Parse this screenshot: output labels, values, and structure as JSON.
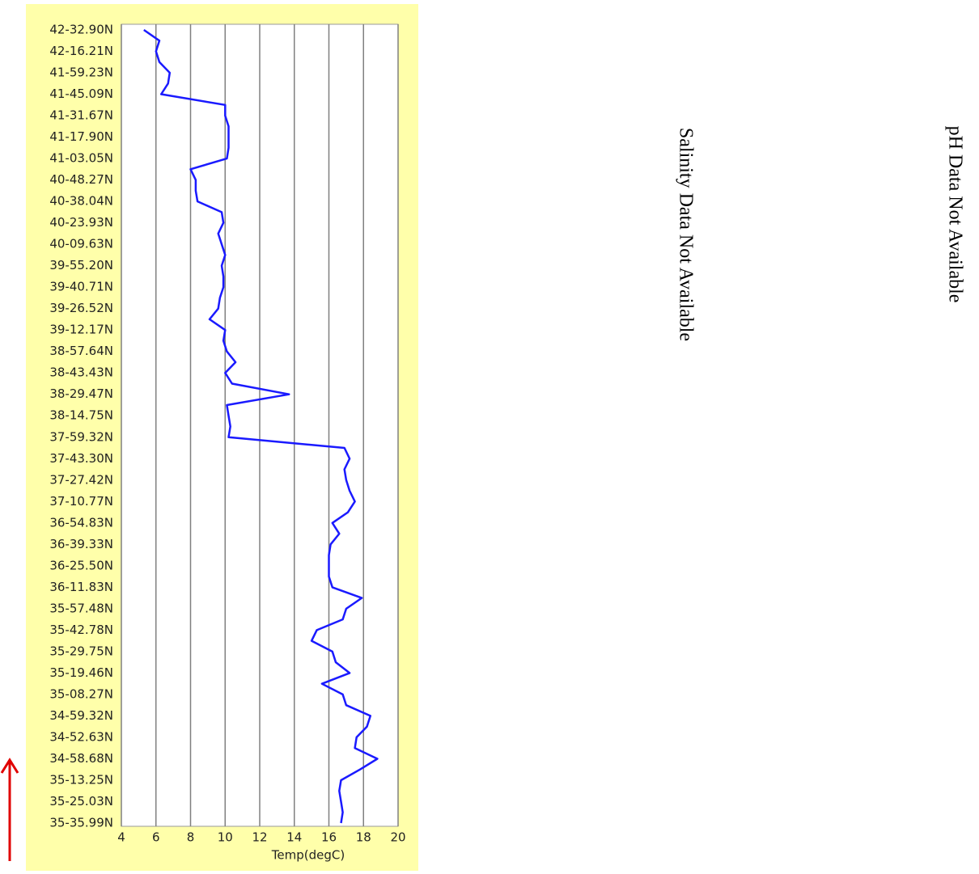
{
  "chart_data": {
    "type": "line",
    "orientation": "horizontal",
    "x_label": "Temp(degC)",
    "categories": [
      "42-32.90N",
      null,
      "42-16.21N",
      null,
      "41-59.23N",
      null,
      "41-45.09N",
      null,
      "41-31.67N",
      null,
      "41-17.90N",
      null,
      "41-03.05N",
      null,
      "40-48.27N",
      null,
      "40-38.04N",
      null,
      "40-23.93N",
      null,
      "40-09.63N",
      null,
      "39-55.20N",
      null,
      "39-40.71N",
      null,
      "39-26.52N",
      null,
      "39-12.17N",
      null,
      "38-57.64N",
      null,
      "38-43.43N",
      null,
      "38-29.47N",
      null,
      "38-14.75N",
      null,
      "37-59.32N",
      null,
      "37-43.30N",
      null,
      "37-27.42N",
      null,
      "37-10.77N",
      null,
      "36-54.83N",
      null,
      "36-39.33N",
      null,
      "36-25.50N",
      null,
      "36-11.83N",
      null,
      "35-57.48N",
      null,
      "35-42.78N",
      null,
      "35-29.75N",
      null,
      "35-19.46N",
      null,
      "35-08.27N",
      null,
      "34-59.32N",
      null,
      "34-52.63N",
      null,
      "34-58.68N",
      null,
      "35-13.25N",
      null,
      "35-25.03N",
      null,
      "35-35.99N"
    ],
    "series": [
      {
        "color": "#1a1aff",
        "values": [
          5.3,
          6.2,
          6.0,
          6.2,
          6.8,
          6.7,
          6.3,
          10.0,
          10.0,
          10.2,
          10.2,
          10.2,
          10.1,
          8.0,
          8.3,
          8.3,
          8.4,
          9.8,
          9.9,
          9.6,
          9.8,
          10.0,
          9.8,
          9.9,
          9.9,
          9.7,
          9.6,
          9.1,
          10.0,
          9.9,
          10.1,
          10.6,
          10.0,
          10.4,
          13.7,
          10.1,
          10.2,
          10.3,
          10.2,
          16.9,
          17.2,
          16.9,
          17.0,
          17.2,
          17.5,
          17.1,
          16.2,
          16.6,
          16.1,
          16.0,
          16.0,
          16.0,
          16.2,
          17.9,
          17.0,
          16.8,
          15.3,
          15.0,
          16.2,
          16.4,
          17.2,
          15.6,
          16.8,
          17.0,
          18.4,
          18.2,
          17.6,
          17.5,
          18.8,
          17.8,
          16.7,
          16.6,
          16.7,
          16.8,
          16.7
        ]
      }
    ],
    "xlim": [
      4,
      20
    ],
    "xticks": [
      4,
      6,
      8,
      10,
      12,
      14,
      16,
      18,
      20
    ],
    "grid": true,
    "annotations": [
      "Salinity Data Not Available",
      "pH Data Not Available"
    ]
  }
}
